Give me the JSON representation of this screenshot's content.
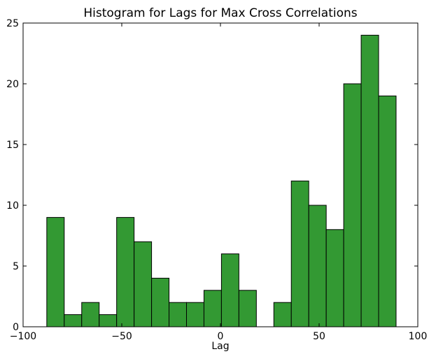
{
  "chart_data": {
    "type": "histogram",
    "title": "Histogram for Lags for Max Cross Correlations",
    "x_label": "Lag",
    "bins": [
      -88,
      -79.15,
      -70.3,
      -61.45,
      -52.6,
      -43.75,
      -34.9,
      -26.05,
      -17.2,
      -8.35,
      0.5,
      9.35,
      18.2,
      27.05,
      35.9,
      44.75,
      53.6,
      62.45,
      71.3,
      80.15,
      89
    ],
    "values": [
      9,
      1,
      2,
      1,
      9,
      7,
      4,
      2,
      2,
      3,
      6,
      3,
      0,
      2,
      12,
      10,
      8,
      20,
      24,
      19
    ],
    "color": "#339933",
    "xlim": [
      -100,
      100
    ],
    "xticks": [
      {
        "value": -100,
        "label": "−100"
      },
      {
        "value": -50,
        "label": "−50"
      },
      0,
      50,
      100
    ],
    "ylim": [
      0,
      25
    ],
    "yticks": [
      0,
      5,
      10,
      15,
      20,
      25
    ]
  }
}
